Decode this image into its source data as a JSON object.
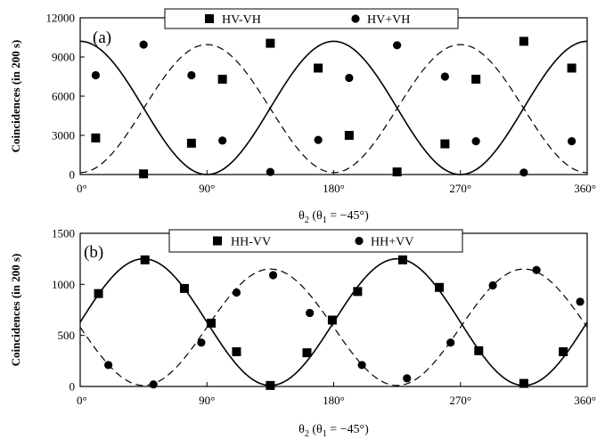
{
  "chart_data": [
    {
      "type": "scatter",
      "panel_label": "(a)",
      "ylabel": "Coincidences (in 200 s)",
      "xlabel": "θ2 (θ1 = −45°)",
      "xlim": [
        0,
        360
      ],
      "ylim": [
        0,
        12000
      ],
      "x_tick_labels": [
        "0°",
        "90°",
        "180°",
        "270°",
        "360°"
      ],
      "y_tick_labels": [
        "0",
        "3000",
        "6000",
        "9000",
        "12000"
      ],
      "legend_position": "top-center",
      "fits": [
        {
          "series": "HV-VH",
          "style": "solid",
          "amplitude": 5100,
          "offset": 5100,
          "phase_deg": 90
        },
        {
          "series": "HV+VH",
          "style": "dashed",
          "amplitude": 4900,
          "offset": 5050,
          "phase_deg": -90
        }
      ],
      "series": [
        {
          "name": "HV-VH",
          "marker": "square",
          "points": [
            [
              11,
              2800
            ],
            [
              45,
              50
            ],
            [
              79,
              2400
            ],
            [
              101,
              7300
            ],
            [
              135,
              10050
            ],
            [
              169,
              8150
            ],
            [
              191,
              3000
            ],
            [
              225,
              200
            ],
            [
              259,
              2350
            ],
            [
              281,
              7300
            ],
            [
              315,
              10200
            ],
            [
              349,
              8150
            ]
          ]
        },
        {
          "name": "HV+VH",
          "marker": "circle",
          "points": [
            [
              11,
              7600
            ],
            [
              45,
              9950
            ],
            [
              79,
              7600
            ],
            [
              101,
              2600
            ],
            [
              135,
              200
            ],
            [
              169,
              2650
            ],
            [
              191,
              7400
            ],
            [
              225,
              9900
            ],
            [
              259,
              7500
            ],
            [
              281,
              2550
            ],
            [
              315,
              150
            ],
            [
              349,
              2550
            ]
          ]
        }
      ]
    },
    {
      "type": "scatter",
      "panel_label": "(b)",
      "ylabel": "Coincidences (in 200 s)",
      "xlabel": "θ2 (θ1 = −45°)",
      "xlim": [
        0,
        360
      ],
      "ylim": [
        0,
        1500
      ],
      "x_tick_labels": [
        "0°",
        "90°",
        "180°",
        "270°",
        "360°"
      ],
      "y_tick_labels": [
        "0",
        "500",
        "1000",
        "1500"
      ],
      "legend_position": "top-center",
      "fits": [
        {
          "series": "HH-VV",
          "style": "solid",
          "amplitude": 620,
          "offset": 630,
          "phase_deg": 0
        },
        {
          "series": "HH+VV",
          "style": "dashed",
          "amplitude": 570,
          "offset": 580,
          "phase_deg": 180
        }
      ],
      "series": [
        {
          "name": "HH-VV",
          "marker": "square",
          "points": [
            [
              13,
              910
            ],
            [
              46,
              1240
            ],
            [
              74,
              960
            ],
            [
              93,
              620
            ],
            [
              111,
              340
            ],
            [
              135,
              10
            ],
            [
              161,
              330
            ],
            [
              179,
              650
            ],
            [
              197,
              930
            ],
            [
              229,
              1240
            ],
            [
              255,
              970
            ],
            [
              283,
              350
            ],
            [
              315,
              30
            ],
            [
              343,
              340
            ]
          ]
        },
        {
          "name": "HH+VV",
          "marker": "circle",
          "points": [
            [
              20,
              210
            ],
            [
              52,
              20
            ],
            [
              86,
              430
            ],
            [
              111,
              920
            ],
            [
              137,
              1090
            ],
            [
              163,
              720
            ],
            [
              200,
              210
            ],
            [
              232,
              80
            ],
            [
              263,
              430
            ],
            [
              293,
              990
            ],
            [
              324,
              1140
            ],
            [
              355,
              830
            ]
          ]
        }
      ]
    }
  ]
}
